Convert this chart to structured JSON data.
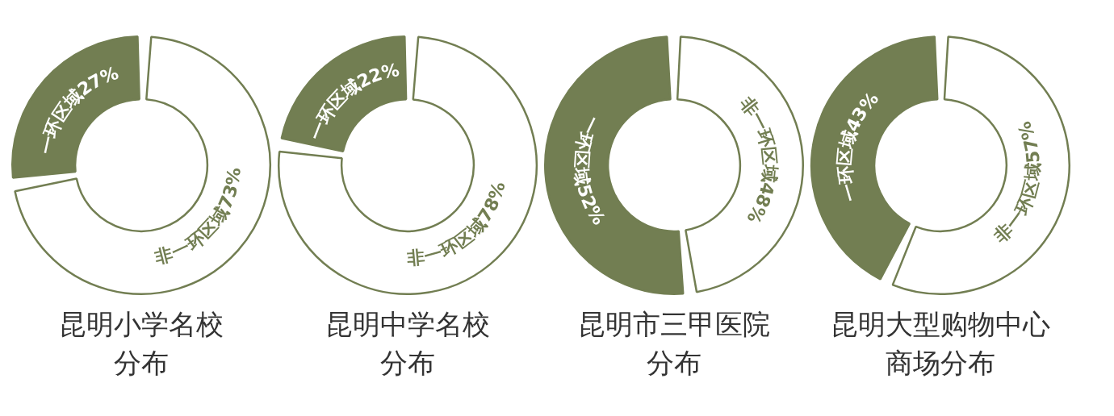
{
  "chart_data": [
    {
      "type": "donut",
      "title": "昆明小学名校",
      "subtitle": "分布",
      "categories": [
        "一环区域",
        "非一环区域"
      ],
      "values": [
        27,
        73
      ],
      "colors": [
        "#727e52",
        "#ffffff"
      ],
      "value_labels": [
        "27%",
        "73%"
      ]
    },
    {
      "type": "donut",
      "title": "昆明中学名校",
      "subtitle": "分布",
      "categories": [
        "一环区域",
        "非一环区域"
      ],
      "values": [
        22,
        78
      ],
      "colors": [
        "#727e52",
        "#ffffff"
      ],
      "value_labels": [
        "22%",
        "78%"
      ]
    },
    {
      "type": "donut",
      "title": "昆明市三甲医院",
      "subtitle": "分布",
      "categories": [
        "一环区域",
        "非一环区域"
      ],
      "values": [
        52,
        48
      ],
      "colors": [
        "#727e52",
        "#ffffff"
      ],
      "value_labels": [
        "52%",
        "48%"
      ]
    },
    {
      "type": "donut",
      "title": "昆明大型购物中心",
      "subtitle": "商场分布",
      "categories": [
        "一环区域",
        "非一环区域"
      ],
      "values": [
        43,
        57
      ],
      "colors": [
        "#727e52",
        "#ffffff"
      ],
      "value_labels": [
        "43%",
        "57%"
      ]
    }
  ]
}
